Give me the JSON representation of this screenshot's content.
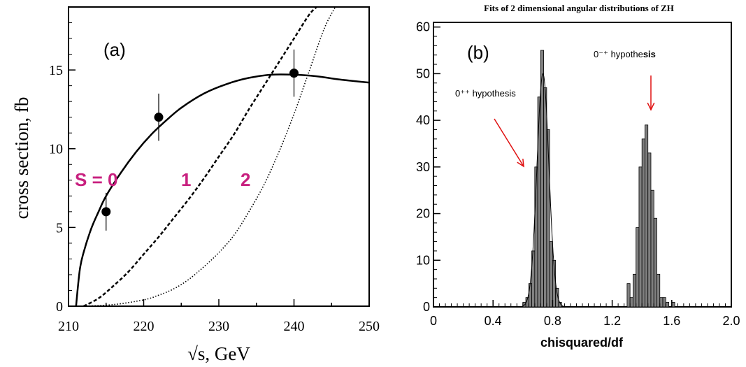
{
  "chart_data": [
    {
      "type": "line",
      "panel_label": "(a)",
      "xlabel": "√s, GeV",
      "ylabel": "cross section, fb",
      "xlim": [
        210,
        250
      ],
      "ylim": [
        0,
        19
      ],
      "x_ticks": [
        210,
        220,
        230,
        240,
        250
      ],
      "y_ticks": [
        0,
        5,
        10,
        15
      ],
      "series": [
        {
          "name": "S = 0",
          "style": "solid",
          "x": [
            211,
            211.5,
            212,
            213,
            214,
            215,
            217,
            219,
            221,
            223,
            225,
            228,
            231,
            234,
            237,
            240,
            243,
            246,
            250
          ],
          "values": [
            0,
            2.3,
            3.4,
            4.9,
            6.0,
            7.0,
            8.5,
            9.8,
            10.9,
            11.8,
            12.6,
            13.5,
            14.1,
            14.5,
            14.7,
            14.7,
            14.6,
            14.4,
            14.2
          ]
        },
        {
          "name": "1",
          "style": "dashed",
          "x": [
            212,
            214,
            216,
            218,
            220,
            222,
            224,
            226,
            228,
            230,
            232,
            234,
            236,
            238,
            240,
            242,
            243
          ],
          "values": [
            0,
            0.5,
            1.3,
            2.2,
            3.3,
            4.4,
            5.6,
            6.8,
            8.1,
            9.5,
            10.9,
            12.5,
            14.0,
            15.5,
            17.0,
            18.5,
            19.0
          ]
        },
        {
          "name": "2",
          "style": "dotted",
          "x": [
            212,
            216,
            220,
            222,
            224,
            226,
            228,
            230,
            232,
            234,
            236,
            238,
            240,
            242,
            244,
            245.5
          ],
          "values": [
            0,
            0.1,
            0.4,
            0.7,
            1.1,
            1.7,
            2.5,
            3.4,
            4.5,
            6.0,
            7.7,
            9.8,
            12.2,
            14.9,
            17.6,
            19.0
          ]
        }
      ],
      "points": [
        {
          "x": 215,
          "y": 6.0,
          "err": 1.2
        },
        {
          "x": 222,
          "y": 12.0,
          "err": 1.5
        },
        {
          "x": 240,
          "y": 14.8,
          "err": 1.5
        }
      ],
      "annotations": {
        "s_label": "S = 0",
        "s1_label": "1",
        "s2_label": "2",
        "color": "#c8207f"
      }
    },
    {
      "type": "bar",
      "title": "Fits of  2 dimensional angular distributions of ZH",
      "panel_label": "(b)",
      "xlabel": "chisquared/df",
      "ylabel": "",
      "xlim": [
        0,
        2.0
      ],
      "ylim": [
        0,
        61
      ],
      "x_ticks": [
        "0",
        "0.4",
        "0.8",
        "1.2",
        "1.6",
        "2.0"
      ],
      "y_ticks": [
        "0",
        "10",
        "20",
        "30",
        "40",
        "50",
        "60"
      ],
      "bin_width": 0.02,
      "histogram_bins": [
        {
          "x": 0.6,
          "value": 1
        },
        {
          "x": 0.62,
          "value": 2
        },
        {
          "x": 0.64,
          "value": 5
        },
        {
          "x": 0.66,
          "value": 12
        },
        {
          "x": 0.68,
          "value": 30
        },
        {
          "x": 0.7,
          "value": 45
        },
        {
          "x": 0.72,
          "value": 55
        },
        {
          "x": 0.74,
          "value": 47
        },
        {
          "x": 0.76,
          "value": 38
        },
        {
          "x": 0.78,
          "value": 14
        },
        {
          "x": 0.8,
          "value": 10
        },
        {
          "x": 0.82,
          "value": 4
        },
        {
          "x": 0.84,
          "value": 1
        },
        {
          "x": 1.3,
          "value": 5
        },
        {
          "x": 1.32,
          "value": 2
        },
        {
          "x": 1.34,
          "value": 7
        },
        {
          "x": 1.36,
          "value": 17
        },
        {
          "x": 1.38,
          "value": 30
        },
        {
          "x": 1.4,
          "value": 36
        },
        {
          "x": 1.42,
          "value": 39
        },
        {
          "x": 1.44,
          "value": 33
        },
        {
          "x": 1.46,
          "value": 25
        },
        {
          "x": 1.48,
          "value": 19
        },
        {
          "x": 1.5,
          "value": 7
        },
        {
          "x": 1.52,
          "value": 2
        },
        {
          "x": 1.54,
          "value": 2
        },
        {
          "x": 1.56,
          "value": 1
        },
        {
          "x": 1.6,
          "value": 1
        }
      ],
      "gaussian_fit": {
        "mean": 0.735,
        "sigma": 0.04,
        "peak": 50
      },
      "annotations": {
        "hyp1": "0⁺⁺ hypothesis",
        "hyp2_pre": "0⁻⁺ hypothe",
        "hyp2_bold": "sis",
        "arrow_color": "#e01010"
      },
      "fill_color": "#808080"
    }
  ]
}
